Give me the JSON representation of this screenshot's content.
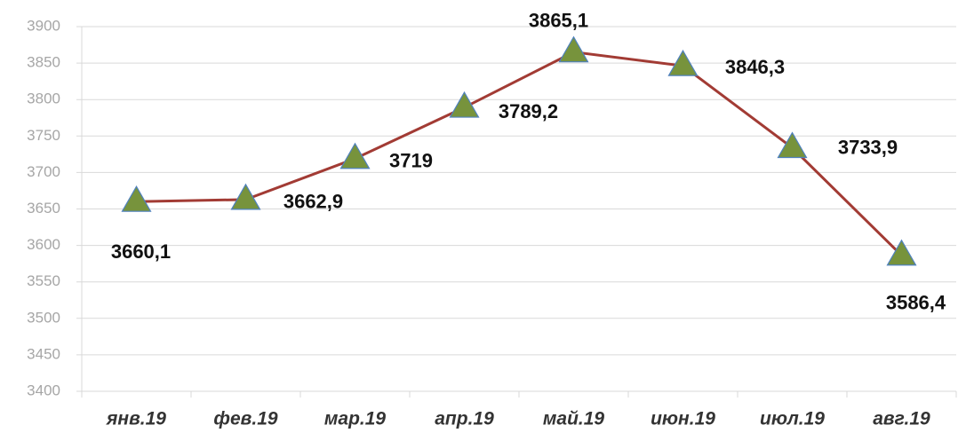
{
  "chart_data": {
    "type": "line",
    "categories": [
      "янв.19",
      "фев.19",
      "мар.19",
      "апр.19",
      "май.19",
      "июн.19",
      "июл.19",
      "авг.19"
    ],
    "series": [
      {
        "color": "#a23b34",
        "marker_color": "#77933c",
        "values": [
          3660.1,
          3662.9,
          3719,
          3789.2,
          3865.1,
          3846.3,
          3733.9,
          3586.4
        ],
        "value_labels": [
          "3660,1",
          "3662,9",
          "3719",
          "3789,2",
          "3865,1",
          "3846,3",
          "3733,9",
          "3586,4"
        ]
      }
    ],
    "ylim": [
      3400,
      3900
    ],
    "yticks": [
      3400,
      3450,
      3500,
      3550,
      3600,
      3650,
      3700,
      3750,
      3800,
      3850,
      3900
    ],
    "grid": true
  }
}
